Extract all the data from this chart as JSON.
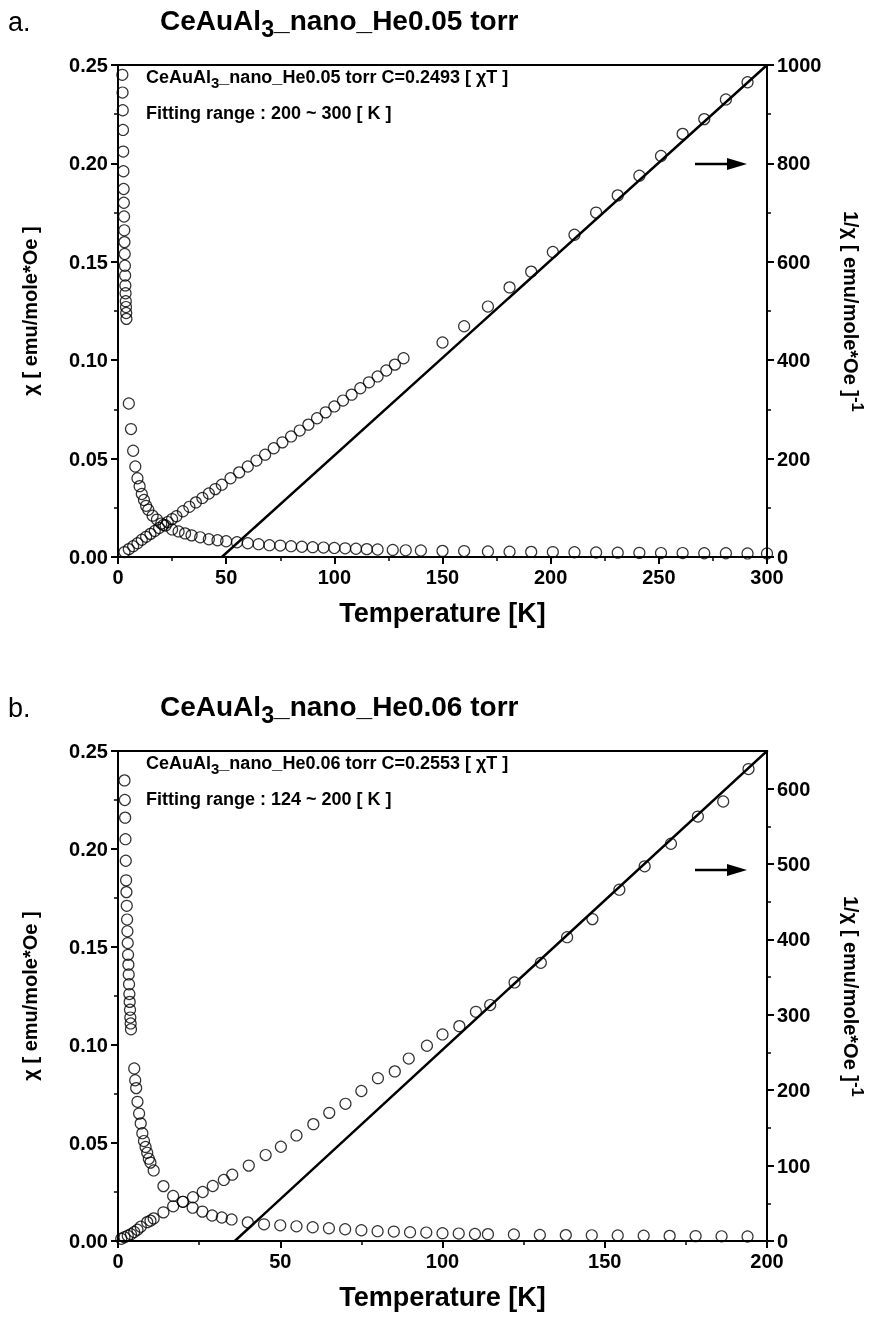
{
  "chart_data": [
    {
      "type": "scatter",
      "title": "CeAuAl$_{3}$_nano_He0.05 torr",
      "xlabel": "Temperature [K]",
      "ylabel": "χ [ emu/mole*Oe ]",
      "y2label": "1/χ [ emu/mole*Oe ]$^{-1}$",
      "annotations": [
        "a.",
        "CeAuAl$_{3}$_nano_He0.05 torr C=0.2493 [ χT ]",
        "Fitting range : 200 ~ 300 [ K ]"
      ],
      "xlim": [
        0,
        300
      ],
      "xticks": [
        0,
        50,
        100,
        150,
        200,
        250,
        300
      ],
      "ylim": [
        0,
        0.25
      ],
      "yticks": [
        {
          "value": 0,
          "label": "0.00"
        },
        {
          "value": 0.05,
          "label": "0.05"
        },
        {
          "value": 0.1,
          "label": "0.10"
        },
        {
          "value": 0.15,
          "label": "0.15"
        },
        {
          "value": 0.2,
          "label": "0.20"
        },
        {
          "value": 0.25,
          "label": "0.25"
        }
      ],
      "y2lim": [
        0,
        1000
      ],
      "y2ticks": [
        0,
        200,
        400,
        600,
        800,
        1000
      ],
      "marker": "circle",
      "grid": false,
      "series": [
        {
          "type": "scatter",
          "color": "#000000",
          "x": [
            2.0,
            2.1,
            2.2,
            2.3,
            2.4,
            2.5,
            2.6,
            2.7,
            2.8,
            2.9,
            3.0,
            3.1,
            3.2,
            3.3,
            3.4,
            3.5,
            3.6,
            3.7,
            3.8,
            3.9,
            5,
            6,
            7,
            8,
            9,
            10,
            11,
            12,
            13,
            14,
            16,
            18,
            20,
            22,
            25,
            28,
            31,
            34,
            38,
            42,
            46,
            50,
            55,
            60,
            65,
            70,
            75,
            80,
            85,
            90,
            95,
            100,
            105,
            110,
            115,
            120,
            127,
            133,
            140,
            150,
            160,
            171,
            181,
            191,
            201,
            211,
            221,
            231,
            241,
            251,
            261,
            271,
            281,
            291,
            300
          ],
          "values": [
            0.245,
            0.236,
            0.227,
            0.217,
            0.206,
            0.196,
            0.187,
            0.18,
            0.173,
            0.166,
            0.16,
            0.154,
            0.148,
            0.143,
            0.138,
            0.134,
            0.13,
            0.127,
            0.124,
            0.121,
            0.078,
            0.065,
            0.054,
            0.046,
            0.04,
            0.036,
            0.032,
            0.029,
            0.026,
            0.024,
            0.021,
            0.019,
            0.017,
            0.016,
            0.014,
            0.013,
            0.012,
            0.011,
            0.01,
            0.009,
            0.0085,
            0.008,
            0.0075,
            0.007,
            0.0065,
            0.006,
            0.0058,
            0.0055,
            0.0052,
            0.005,
            0.0048,
            0.0046,
            0.0044,
            0.0042,
            0.004,
            0.0038,
            0.0036,
            0.0034,
            0.0033,
            0.0031,
            0.003,
            0.0028,
            0.0027,
            0.0026,
            0.0025,
            0.0024,
            0.0023,
            0.0022,
            0.0021,
            0.002,
            0.002,
            0.0019,
            0.0019,
            0.0018,
            0.0018
          ]
        },
        {
          "type": "scatter",
          "axis": "y2",
          "color": "#000000",
          "x": [
            3,
            5,
            7,
            9,
            11,
            13,
            15,
            17,
            19,
            21,
            23,
            25,
            27,
            30,
            33,
            36,
            39,
            42,
            45,
            48,
            52,
            56,
            60,
            64,
            68,
            72,
            76,
            80,
            84,
            88,
            92,
            96,
            100,
            104,
            108,
            112,
            116,
            120,
            124,
            128,
            132,
            150,
            160,
            171,
            181,
            191,
            201,
            211,
            221,
            231,
            241,
            251,
            261,
            271,
            281,
            291
          ],
          "values": [
            10,
            16,
            22,
            28,
            35,
            41,
            47,
            53,
            59,
            65,
            71,
            77,
            83,
            93,
            102,
            111,
            120,
            129,
            138,
            147,
            160,
            172,
            184,
            196,
            208,
            221,
            233,
            245,
            257,
            269,
            282,
            294,
            306,
            318,
            330,
            343,
            355,
            367,
            379,
            391,
            404,
            436,
            469,
            509,
            548,
            580,
            620,
            655,
            700,
            735,
            775,
            815,
            860,
            890,
            930,
            965
          ]
        },
        {
          "type": "line",
          "axis": "y2",
          "marker": "none",
          "line_style": "solid",
          "color": "#000000",
          "x": [
            48,
            300
          ],
          "values": [
            0,
            1000
          ]
        }
      ]
    },
    {
      "type": "scatter",
      "title": "CeAuAl$_{3}$_nano_He0.06 torr",
      "xlabel": "Temperature [K]",
      "ylabel": "χ [ emu/mole*Oe ]",
      "y2label": "1/χ [ emu/mole*Oe ]$^{-1}$",
      "annotations": [
        "b.",
        "CeAuAl$_{3}$_nano_He0.06 torr C=0.2553 [ χT ]",
        "Fitting range : 124 ~ 200 [ K ]"
      ],
      "xlim": [
        0,
        200
      ],
      "xticks": [
        0,
        50,
        100,
        150,
        200
      ],
      "ylim": [
        0,
        0.25
      ],
      "yticks": [
        {
          "value": 0,
          "label": "0.00"
        },
        {
          "value": 0.05,
          "label": "0.05"
        },
        {
          "value": 0.1,
          "label": "0.10"
        },
        {
          "value": 0.15,
          "label": "0.15"
        },
        {
          "value": 0.2,
          "label": "0.20"
        },
        {
          "value": 0.25,
          "label": "0.25"
        }
      ],
      "y2lim": [
        0,
        650
      ],
      "y2ticks": [
        0,
        100,
        200,
        300,
        400,
        500,
        600
      ],
      "marker": "circle",
      "grid": false,
      "series": [
        {
          "type": "scatter",
          "color": "#000000",
          "x": [
            2.0,
            2.1,
            2.2,
            2.3,
            2.4,
            2.5,
            2.6,
            2.7,
            2.8,
            2.9,
            3.0,
            3.1,
            3.2,
            3.3,
            3.4,
            3.5,
            3.6,
            3.7,
            3.8,
            3.9,
            4.0,
            5,
            5.3,
            5.6,
            6,
            6.5,
            7,
            7.5,
            8,
            8.5,
            9,
            9.5,
            10,
            11,
            14,
            17,
            20,
            23,
            26,
            29,
            32,
            35,
            40,
            45,
            50,
            55,
            60,
            65,
            70,
            75,
            80,
            85,
            90,
            95,
            100,
            105,
            110,
            114,
            122,
            130,
            138,
            146,
            154,
            162,
            170,
            178,
            186,
            194
          ],
          "values": [
            0.235,
            0.225,
            0.216,
            0.205,
            0.194,
            0.184,
            0.178,
            0.171,
            0.164,
            0.158,
            0.152,
            0.146,
            0.141,
            0.136,
            0.131,
            0.126,
            0.122,
            0.118,
            0.114,
            0.111,
            0.108,
            0.088,
            0.082,
            0.078,
            0.071,
            0.065,
            0.06,
            0.055,
            0.051,
            0.048,
            0.045,
            0.042,
            0.04,
            0.036,
            0.028,
            0.023,
            0.02,
            0.017,
            0.015,
            0.013,
            0.012,
            0.011,
            0.0095,
            0.0085,
            0.008,
            0.0075,
            0.007,
            0.0065,
            0.006,
            0.0055,
            0.005,
            0.0048,
            0.0045,
            0.0043,
            0.004,
            0.0038,
            0.0036,
            0.0035,
            0.0033,
            0.0031,
            0.003,
            0.0029,
            0.0028,
            0.0027,
            0.0026,
            0.0025,
            0.0024,
            0.0023
          ]
        },
        {
          "type": "scatter",
          "axis": "y2",
          "color": "#000000",
          "x": [
            1,
            2,
            3,
            4,
            5,
            6,
            7,
            9,
            10,
            11,
            14,
            17,
            20,
            23.1,
            26.1,
            29.2,
            32.6,
            35.2,
            40.3,
            45.5,
            50.2,
            55,
            60.2,
            65.1,
            70.1,
            75,
            80.1,
            85.3,
            89.6,
            95.2,
            100,
            105.2,
            110.3,
            114.7,
            122.2,
            130.3,
            138.4,
            146.2,
            154.5,
            162.3,
            170.4,
            178.7,
            186.5,
            194.3
          ],
          "values": [
            3,
            5,
            7,
            9,
            12,
            15,
            19,
            25,
            27,
            30,
            38,
            46,
            52,
            58,
            65,
            73,
            81,
            88,
            100,
            114,
            125,
            140,
            155,
            170,
            182,
            199,
            216,
            225,
            242,
            259,
            274,
            285,
            304,
            313,
            343,
            369,
            403,
            427,
            466,
            497,
            527,
            563,
            583,
            626
          ]
        },
        {
          "type": "line",
          "axis": "y2",
          "marker": "none",
          "line_style": "solid",
          "color": "#000000",
          "x": [
            36,
            200
          ],
          "values": [
            0,
            650
          ]
        }
      ]
    }
  ]
}
